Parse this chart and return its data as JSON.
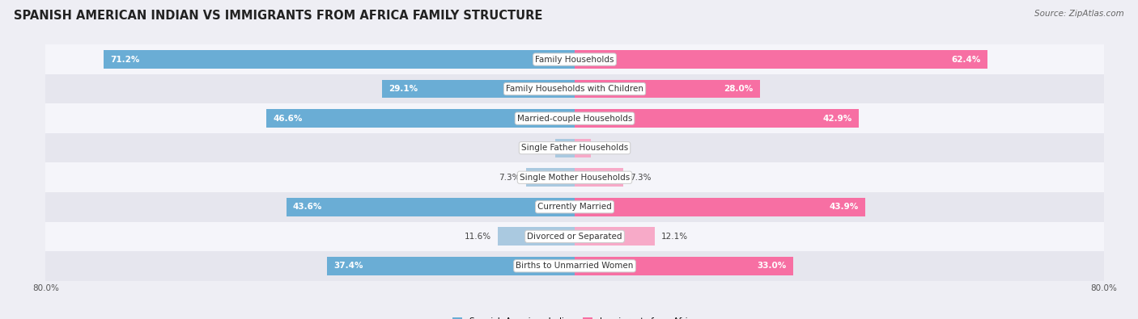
{
  "title": "SPANISH AMERICAN INDIAN VS IMMIGRANTS FROM AFRICA FAMILY STRUCTURE",
  "source": "Source: ZipAtlas.com",
  "categories": [
    "Family Households",
    "Family Households with Children",
    "Married-couple Households",
    "Single Father Households",
    "Single Mother Households",
    "Currently Married",
    "Divorced or Separated",
    "Births to Unmarried Women"
  ],
  "left_values": [
    71.2,
    29.1,
    46.6,
    2.9,
    7.3,
    43.6,
    11.6,
    37.4
  ],
  "right_values": [
    62.4,
    28.0,
    42.9,
    2.4,
    7.3,
    43.9,
    12.1,
    33.0
  ],
  "left_color_strong": "#6aadd5",
  "left_color_light": "#aac9e0",
  "right_color_strong": "#f76fa3",
  "right_color_light": "#f7aac8",
  "axis_max": 80.0,
  "legend_left": "Spanish American Indian",
  "legend_right": "Immigrants from Africa",
  "bg_color": "#eeeef4",
  "row_bg_light": "#f5f5fa",
  "row_bg_dark": "#e6e6ee",
  "title_fontsize": 10.5,
  "source_fontsize": 7.5,
  "label_fontsize": 7.5,
  "bar_height": 0.62,
  "strong_threshold": 15.0
}
